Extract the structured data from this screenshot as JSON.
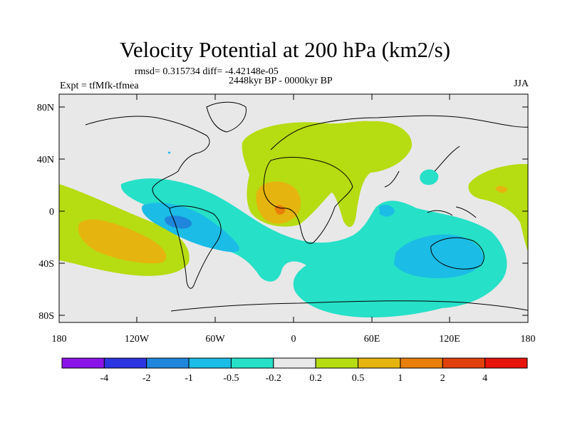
{
  "title": "Velocity Potential at 200 hPa (km2/s)",
  "stats": "rmsd= 0.315734 diff= -4.42148e-05",
  "experiment": "Expt = tfMfk-tfmea",
  "period": "2448kyr BP - 0000kyr BP",
  "season": "JJA",
  "y_ticks": [
    "80N",
    "40N",
    "0",
    "40S",
    "80S"
  ],
  "x_ticks": [
    "180",
    "120W",
    "60W",
    "0",
    "60E",
    "120E",
    "180"
  ],
  "colorbar": {
    "labels": [
      "-4",
      "-2",
      "-1",
      "-0.5",
      "-0.2",
      "0.2",
      "0.5",
      "1",
      "2",
      "4"
    ],
    "colors": [
      "#8a14e8",
      "#2b35e0",
      "#1f86dc",
      "#1bbce6",
      "#26e0c8",
      "#e8e8e8",
      "#b6dc12",
      "#e6b40e",
      "#e87f0a",
      "#e0410c",
      "#e6140a"
    ]
  },
  "palette": {
    "neutral": "#e8e8e8",
    "neg1": "#26e0c8",
    "neg2": "#1bbce6",
    "neg3": "#1f86dc",
    "pos1": "#b6dc12",
    "pos2": "#e6b40e",
    "pos3": "#e87f0a"
  }
}
